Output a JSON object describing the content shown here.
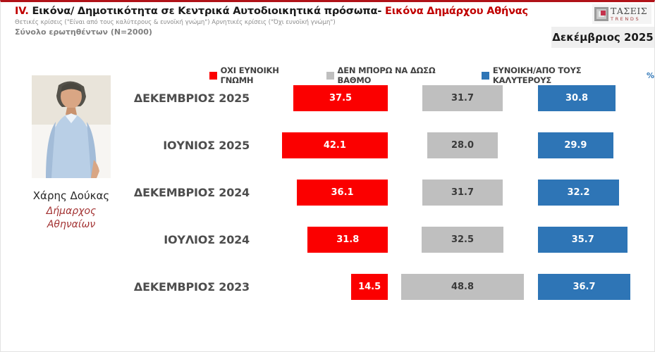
{
  "header": {
    "section_number": "IV.",
    "title_main": "Εικόνα/ Δημοτικότητα σε Κεντρικά Αυτοδιοικητικά πρόσωπα-",
    "title_highlight": "Εικόνα Δημάρχου Αθήνας",
    "subtitle": "Θετικές κρίσεις (\"Είναι από τους καλύτερους & ευνοϊκή γνώμη\")  Αρνητικές κρίσεις (\"Όχι ευνοϊκή γνώμη\")",
    "sample": "Σύνολο ερωτηθέντων (Ν=2000)",
    "period_box": "Δεκέμβριος 2025"
  },
  "logo": {
    "name": "ΤΑΣΕΙΣ",
    "sub": "TRENDS"
  },
  "person": {
    "name": "Χάρης Δούκας",
    "role_line1": "Δήμαρχος",
    "role_line2": "Αθηναίων"
  },
  "legend": {
    "negative": "ΟΧΙ ΕΥΝΟΙΚΗ ΓΝΩΜΗ",
    "neutral": "ΔΕΝ ΜΠΟΡΩ ΝΑ ΔΩΣΩ ΒΑΘΜΟ",
    "positive": "ΕΥΝΟΙΚΗ/ΑΠΟ ΤΟΥΣ ΚΑΛΥΤΕΡΟΥΣ",
    "unit": "%"
  },
  "colors": {
    "negative": "#fb0000",
    "neutral": "#bfbfbf",
    "positive": "#2e75b6",
    "accent_red": "#c00000"
  },
  "chart_data": {
    "type": "bar",
    "orientation": "horizontal",
    "categories": [
      "ΔΕΚΕΜΒΡΙΟΣ 2025",
      "ΙΟΥΝΙΟΣ 2025",
      "ΔΕΚΕΜΒΡΙΟΣ 2024",
      "ΙΟΥΛΙΟΣ 2024",
      "ΔΕΚΕΜΒΡΙΟΣ 2023"
    ],
    "series": [
      {
        "name": "ΟΧΙ ΕΥΝΟΙΚΗ ΓΝΩΜΗ",
        "color": "#fb0000",
        "values": [
          37.5,
          42.1,
          36.1,
          31.8,
          14.5
        ],
        "labels": [
          "37.5",
          "42.1",
          "36.1",
          "31.8",
          "14.5"
        ]
      },
      {
        "name": "ΔΕΝ ΜΠΟΡΩ ΝΑ ΔΩΣΩ ΒΑΘΜΟ",
        "color": "#bfbfbf",
        "values": [
          31.7,
          28.0,
          31.7,
          32.5,
          48.8
        ],
        "labels": [
          "31.7",
          "28.0",
          "31.7",
          "32.5",
          "48.8"
        ]
      },
      {
        "name": "ΕΥΝΟΙΚΗ/ΑΠΟ ΤΟΥΣ ΚΑΛΥΤΕΡΟΥΣ",
        "color": "#2e75b6",
        "values": [
          30.8,
          29.9,
          32.2,
          35.7,
          36.7
        ],
        "labels": [
          "30.8",
          "29.9",
          "32.2",
          "35.7",
          "36.7"
        ]
      }
    ],
    "unit": "%",
    "value_range": [
      0,
      50
    ],
    "legend_position": "top"
  }
}
